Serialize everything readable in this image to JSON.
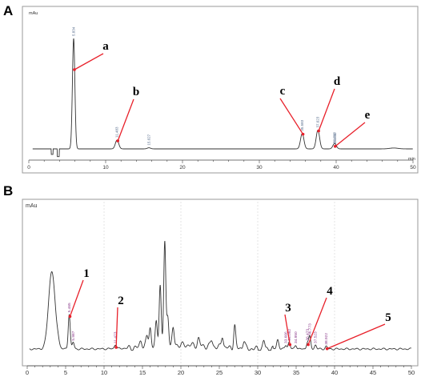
{
  "panels": {
    "A": {
      "panel_label": "A",
      "unit_label": "mAu",
      "x_axis_label": "min",
      "x_ticks": [
        "0",
        "10",
        "20",
        "30",
        "40",
        "50"
      ],
      "peak_rt_labels": [
        "5.834",
        "11.483",
        "15.627",
        "35.583",
        "37.623",
        "39.851",
        "39.768"
      ],
      "callouts": [
        "a",
        "b",
        "c",
        "d",
        "e"
      ]
    },
    "B": {
      "panel_label": "B",
      "unit_label": "mAu",
      "x_ticks": [
        "0",
        "5",
        "10",
        "15",
        "20",
        "25",
        "30",
        "35",
        "40",
        "45",
        "50"
      ],
      "peak_rt_labels": [
        "5.465",
        "5.987",
        "11.473",
        "33.666",
        "34.092",
        "34.950",
        "36.473",
        "36.773",
        "37.523",
        "38.922"
      ],
      "callouts": [
        "1",
        "2",
        "3",
        "4",
        "5"
      ]
    }
  },
  "colors": {
    "trace": "#333333",
    "arrow": "#e8202a",
    "peak_label_A": "#556b8b",
    "peak_label_B": "#8a3a8a",
    "grid": "#c8c8c8"
  },
  "chart_data": [
    {
      "type": "line",
      "xlabel": "min",
      "ylabel": "mAu",
      "xlim": [
        0,
        50
      ],
      "x_ticks": [
        0,
        10,
        20,
        30,
        40,
        50
      ],
      "grid": false,
      "peaks": [
        {
          "rt": 5.834,
          "label": "a",
          "relative_height": 1.0
        },
        {
          "rt": 11.483,
          "label": "b",
          "relative_height": 0.08
        },
        {
          "rt": 15.627,
          "label": "",
          "relative_height": 0.01
        },
        {
          "rt": 35.583,
          "label": "c",
          "relative_height": 0.14
        },
        {
          "rt": 37.623,
          "label": "d",
          "relative_height": 0.17
        },
        {
          "rt": 39.851,
          "label": "",
          "relative_height": 0.02
        },
        {
          "rt": 39.768,
          "label": "e",
          "relative_height": 0.03
        }
      ]
    },
    {
      "type": "line",
      "ylabel": "mAu",
      "xlim": [
        0,
        50
      ],
      "x_ticks": [
        0,
        5,
        10,
        15,
        20,
        25,
        30,
        35,
        40,
        45,
        50
      ],
      "grid": true,
      "peaks": [
        {
          "rt": 3.2,
          "label": "",
          "relative_height": 0.58
        },
        {
          "rt": 5.465,
          "label": "1",
          "relative_height": 0.26
        },
        {
          "rt": 5.987,
          "label": "",
          "relative_height": 0.05
        },
        {
          "rt": 11.473,
          "label": "2",
          "relative_height": 0.03
        },
        {
          "rt": 16.0,
          "label": "",
          "relative_height": 0.14
        },
        {
          "rt": 16.8,
          "label": "",
          "relative_height": 0.17
        },
        {
          "rt": 17.3,
          "label": "",
          "relative_height": 0.46
        },
        {
          "rt": 17.9,
          "label": "",
          "relative_height": 0.77
        },
        {
          "rt": 18.3,
          "label": "",
          "relative_height": 0.22
        },
        {
          "rt": 19.0,
          "label": "",
          "relative_height": 0.12
        },
        {
          "rt": 25.4,
          "label": "",
          "relative_height": 0.09
        },
        {
          "rt": 27.0,
          "label": "",
          "relative_height": 0.17
        },
        {
          "rt": 30.8,
          "label": "",
          "relative_height": 0.06
        },
        {
          "rt": 33.666,
          "label": "",
          "relative_height": 0.03
        },
        {
          "rt": 34.092,
          "label": "3",
          "relative_height": 0.05
        },
        {
          "rt": 34.95,
          "label": "",
          "relative_height": 0.03
        },
        {
          "rt": 36.473,
          "label": "4",
          "relative_height": 0.05
        },
        {
          "rt": 36.773,
          "label": "",
          "relative_height": 0.09
        },
        {
          "rt": 37.523,
          "label": "",
          "relative_height": 0.03
        },
        {
          "rt": 38.922,
          "label": "5",
          "relative_height": 0.02
        }
      ]
    }
  ]
}
